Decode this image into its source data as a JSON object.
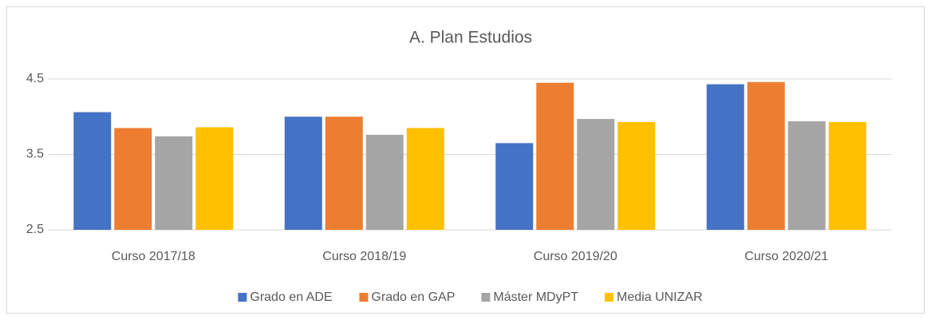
{
  "chart_data": {
    "type": "bar",
    "title": "A. Plan Estudios",
    "categories": [
      "Curso 2017/18",
      "Curso 2018/19",
      "Curso 2019/20",
      "Curso 2020/21"
    ],
    "series": [
      {
        "name": "Grado en ADE",
        "color": "#4472c4",
        "values": [
          4.06,
          4.0,
          3.65,
          4.43
        ]
      },
      {
        "name": "Grado en GAP",
        "color": "#ed7d31",
        "values": [
          3.85,
          4.0,
          4.45,
          4.46
        ]
      },
      {
        "name": "Máster MDyPT",
        "color": "#a5a5a5",
        "values": [
          3.74,
          3.76,
          3.97,
          3.94
        ]
      },
      {
        "name": "Media UNIZAR",
        "color": "#ffc000",
        "values": [
          3.86,
          3.85,
          3.93,
          3.93
        ]
      }
    ],
    "ylim": [
      2.5,
      4.5
    ],
    "yticks": [
      2.5,
      3.5,
      4.5
    ],
    "grid": true,
    "legend": "bottom"
  }
}
